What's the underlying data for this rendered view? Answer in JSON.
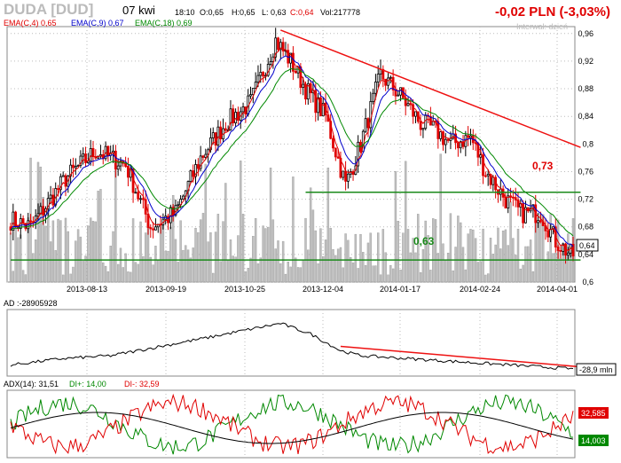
{
  "header": {
    "ticker": "DUDA [DUD]",
    "date": "07 kwi",
    "time": "18:10",
    "open": "O:0,65",
    "high": "H:0,65",
    "low": "L: 0,63",
    "close": "C:0,64",
    "volume": "Vol:217778",
    "change": "-0,02 PLN (-3,03%)",
    "interval": "Interwał: dzień"
  },
  "colors": {
    "up": "#000000",
    "down": "#e00000",
    "ema4": "#e00000",
    "ema9": "#0000cc",
    "ema18": "#008800",
    "trend": "#ee1111",
    "support": "#1a8a1a",
    "volume": "#c0c0c0",
    "grid": "#bbbbbb"
  },
  "chart_data": [
    {
      "type": "candlestick",
      "legend": [
        "EMA(C,4) 0,65",
        "EMA(C,9) 0,67",
        "EMA(C,18) 0,69"
      ],
      "x_ticks": [
        "2013-08-13",
        "2013-09-19",
        "2013-10-25",
        "2013-12-04",
        "2014-01-17",
        "2014-02-24",
        "2014-04-01"
      ],
      "y_ticks": [
        "0,96",
        "0,92",
        "0,88",
        "0,84",
        "0,8",
        "0,76",
        "0,72",
        "0,68",
        "0,64",
        "0,6"
      ],
      "ylim": [
        0.6,
        0.97
      ],
      "last_price_label": "0,64",
      "annotations": [
        {
          "text": "0,73",
          "value": 0.73,
          "color": "#e00000"
        },
        {
          "text": "0,63",
          "value": 0.63,
          "color": "#1a8a1a"
        }
      ],
      "close_anchors": [
        [
          0,
          0.69
        ],
        [
          8,
          0.68
        ],
        [
          22,
          0.75
        ],
        [
          34,
          0.79
        ],
        [
          46,
          0.77
        ],
        [
          56,
          0.68
        ],
        [
          66,
          0.7
        ],
        [
          76,
          0.78
        ],
        [
          86,
          0.83
        ],
        [
          96,
          0.86
        ],
        [
          106,
          0.95
        ],
        [
          112,
          0.92
        ],
        [
          118,
          0.88
        ],
        [
          126,
          0.84
        ],
        [
          134,
          0.74
        ],
        [
          140,
          0.8
        ],
        [
          148,
          0.9
        ],
        [
          156,
          0.87
        ],
        [
          164,
          0.83
        ],
        [
          170,
          0.82
        ],
        [
          176,
          0.8
        ],
        [
          184,
          0.81
        ],
        [
          190,
          0.76
        ],
        [
          198,
          0.72
        ],
        [
          204,
          0.7
        ],
        [
          212,
          0.7
        ],
        [
          218,
          0.66
        ],
        [
          224,
          0.64
        ]
      ],
      "trendlines": [
        {
          "from": [
            108,
            0.965
          ],
          "to": [
            228,
            0.795
          ],
          "color": "#ee1111"
        },
        {
          "from": [
            118,
            0.73
          ],
          "to": [
            228,
            0.73
          ],
          "color": "#1a8a1a"
        },
        {
          "from": [
            0,
            0.632
          ],
          "to": [
            228,
            0.632
          ],
          "color": "#1a8a1a"
        }
      ]
    },
    {
      "type": "line",
      "label": "AD :-28905928",
      "last_value_label": "-28,9 mln",
      "anchors": [
        [
          0,
          0.15
        ],
        [
          20,
          0.25
        ],
        [
          40,
          0.3
        ],
        [
          60,
          0.45
        ],
        [
          80,
          0.6
        ],
        [
          95,
          0.72
        ],
        [
          108,
          0.82
        ],
        [
          120,
          0.65
        ],
        [
          132,
          0.38
        ],
        [
          140,
          0.3
        ],
        [
          160,
          0.25
        ],
        [
          180,
          0.2
        ],
        [
          200,
          0.15
        ],
        [
          228,
          0.08
        ]
      ],
      "trendline": {
        "from": [
          132,
          0.45
        ],
        "to": [
          228,
          0.12
        ],
        "color": "#ee1111"
      }
    },
    {
      "type": "line",
      "label": "ADX(14): 31,51",
      "series": [
        {
          "name": "DI+: 14,00",
          "color": "#008800",
          "last_value_label": "14,003"
        },
        {
          "name": "DI-: 32,59",
          "color": "#e00000",
          "last_value_label": "32,585"
        },
        {
          "name": "ADX",
          "color": "#000000"
        }
      ]
    }
  ]
}
